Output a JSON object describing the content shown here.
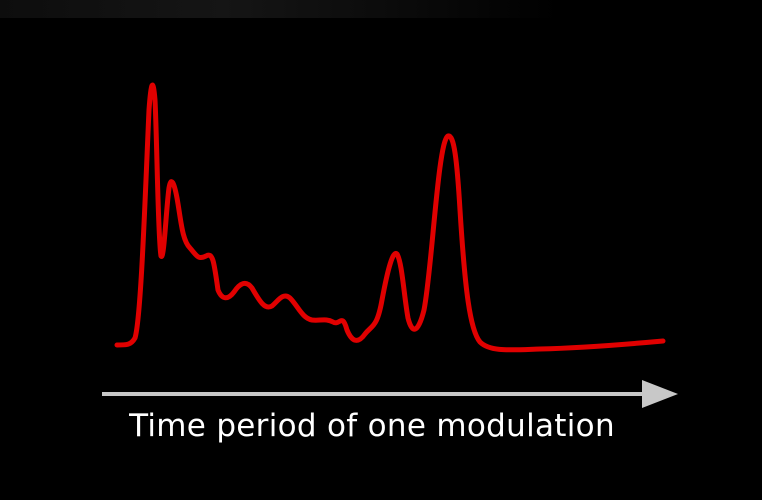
{
  "axis": {
    "label": "Time period of one modulation"
  },
  "colors": {
    "background": "#000000",
    "curve": "#e00000",
    "arrow": "#c8c8c8",
    "label": "#ffffff"
  },
  "icons": {
    "arrow": "arrow-right-icon"
  }
}
